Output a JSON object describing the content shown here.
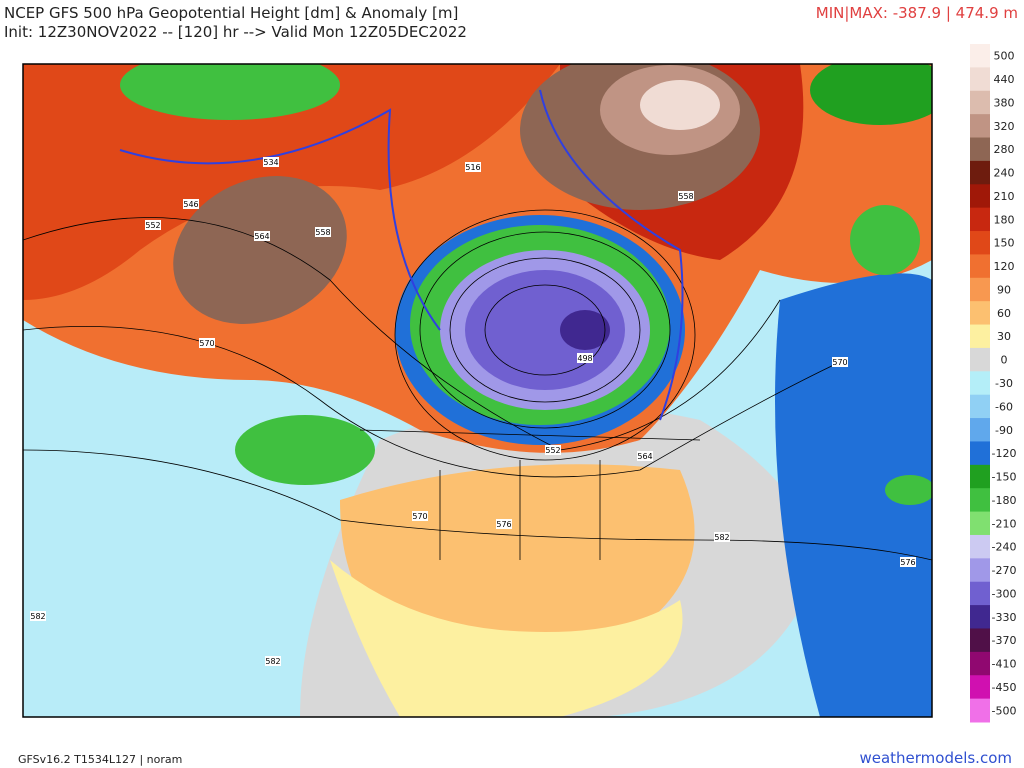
{
  "header": {
    "title": "NCEP GFS 500 hPa Geopotential Height [dm] & Anomaly [m]",
    "subtitle": "Init: 12Z30NOV2022 -- [120] hr --> Valid Mon 12Z05DEC2022",
    "minmax": "MIN|MAX: -387.9 | 474.9 m"
  },
  "colorbar": {
    "levels": [
      500,
      440,
      380,
      320,
      280,
      240,
      210,
      180,
      150,
      120,
      90,
      60,
      30,
      0,
      -30,
      -60,
      -90,
      -120,
      -150,
      -180,
      -210,
      -240,
      -270,
      -300,
      -330,
      -370,
      -410,
      -450,
      -500
    ],
    "colors": [
      "#fbeee9",
      "#f0dcd4",
      "#dcbcae",
      "#c09484",
      "#8e6654",
      "#6e1c0e",
      "#a01808",
      "#c82810",
      "#e04818",
      "#f07030",
      "#f89850",
      "#fcc070",
      "#fdf0a0",
      "#d8d8d8",
      "#b4eef8",
      "#90d0f4",
      "#60a8ec",
      "#2070d8",
      "#20a020",
      "#40c040",
      "#80e070",
      "#cccaf2",
      "#a098e8",
      "#7060d0",
      "#402890",
      "#501048",
      "#900870",
      "#d010b0",
      "#f070e8"
    ]
  },
  "contour_labels": [
    534,
    546,
    552,
    564,
    558,
    570,
    516,
    558,
    498,
    570,
    552,
    564,
    570,
    576,
    582,
    576,
    582,
    582
  ],
  "footer": {
    "model": "GFSv16.2 T1534L127 | noram",
    "site": "weathermodels.com"
  }
}
